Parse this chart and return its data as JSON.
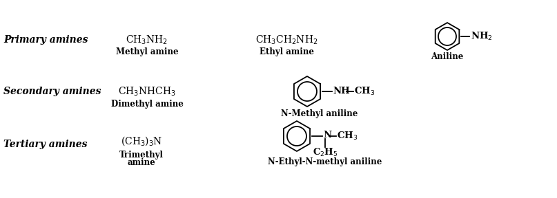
{
  "bg_color": "#ffffff",
  "figsize": [
    8.07,
    2.88
  ],
  "dpi": 100,
  "labels": {
    "primary": "Primary amines",
    "secondary": "Secondary amines",
    "tertiary": "Tertiary amines"
  },
  "primary": {
    "formula1": "CH$_3$NH$_2$",
    "name1": "Methyl amine",
    "formula2": "CH$_3$CH$_2$NH$_2$",
    "name2": "Ethyl amine",
    "name3": "Aniline"
  },
  "secondary": {
    "formula1": "CH$_3$NHCH$_3$",
    "name1": "Dimethyl amine",
    "name2": "N-Methyl aniline"
  },
  "tertiary": {
    "formula1": "(CH$_3$)$_3$N",
    "name1a": "Trimethyl",
    "name1b": "amine",
    "name2": "N-Ethyl-N-methyl aniline"
  }
}
